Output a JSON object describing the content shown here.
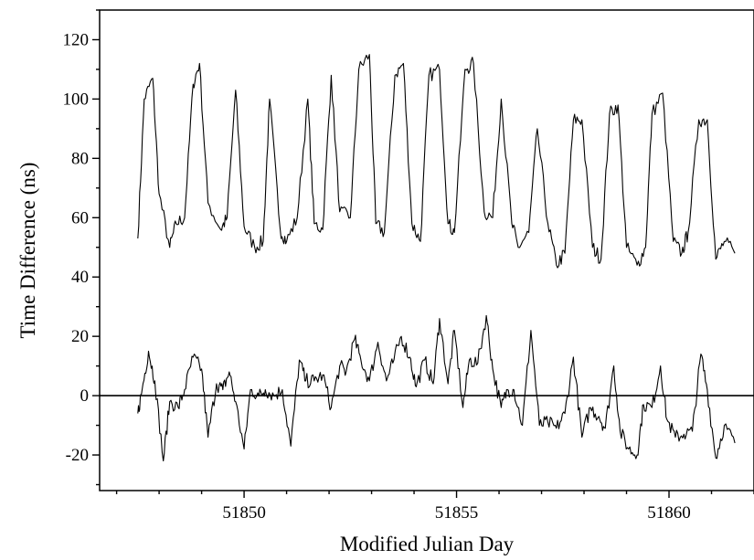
{
  "chart_data": {
    "type": "line",
    "xlabel": "Modified Julian Day",
    "ylabel": "Time Difference (ns)",
    "xlim": [
      51846.6,
      51862.0
    ],
    "ylim": [
      -32,
      130
    ],
    "x_ticks": [
      51850,
      51855,
      51860
    ],
    "x_tick_labels": [
      "51850",
      "51855",
      "51860"
    ],
    "y_ticks": [
      -20,
      0,
      20,
      40,
      60,
      80,
      100,
      120
    ],
    "y_tick_labels": [
      "-20",
      "0",
      "20",
      "40",
      "60",
      "80",
      "100",
      "120"
    ],
    "reference_line_y": 0,
    "grid": false,
    "legend": "none",
    "series": [
      {
        "x": [
          51847.5,
          51847.65,
          51847.85,
          51848.0,
          51848.25,
          51848.4,
          51848.6,
          51848.8,
          51848.95,
          51849.15,
          51849.45,
          51849.6,
          51849.8,
          51850.0,
          51850.25,
          51850.45,
          51850.6,
          51850.85,
          51851.0,
          51851.25,
          51851.5,
          51851.65,
          51851.85,
          51852.05,
          51852.25,
          51852.5,
          51852.7,
          51852.95,
          51853.1,
          51853.3,
          51853.55,
          51853.75,
          51853.95,
          51854.15,
          51854.35,
          51854.6,
          51854.8,
          51854.95,
          51855.2,
          51855.4,
          51855.65,
          51855.85,
          51856.05,
          51856.3,
          51856.45,
          51856.7,
          51856.9,
          51857.15,
          51857.35,
          51857.55,
          51857.75,
          51857.95,
          51858.2,
          51858.4,
          51858.6,
          51858.8,
          51859.0,
          51859.25,
          51859.45,
          51859.6,
          51859.85,
          51860.1,
          51860.3,
          51860.45,
          51860.7,
          51860.9,
          51861.1,
          51861.3,
          51861.55
        ],
        "y": [
          53,
          100,
          107,
          68,
          50,
          58,
          60,
          105,
          112,
          65,
          56,
          60,
          103,
          57,
          50,
          52,
          100,
          56,
          52,
          60,
          100,
          58,
          56,
          108,
          62,
          60,
          110,
          115,
          58,
          55,
          108,
          112,
          58,
          52,
          108,
          110,
          58,
          55,
          110,
          112,
          62,
          60,
          100,
          58,
          50,
          55,
          90,
          58,
          44,
          48,
          93,
          93,
          50,
          46,
          95,
          98,
          50,
          44,
          50,
          95,
          102,
          52,
          48,
          55,
          93,
          93,
          46,
          52,
          48
        ]
      },
      {
        "x": [
          51847.5,
          51847.6,
          51847.75,
          51847.9,
          51848.1,
          51848.25,
          51848.45,
          51848.6,
          51848.8,
          51849.0,
          51849.15,
          51849.35,
          51849.5,
          51849.65,
          51849.8,
          51850.0,
          51850.15,
          51850.35,
          51850.5,
          51850.7,
          51850.9,
          51851.1,
          51851.3,
          51851.45,
          51851.65,
          51851.85,
          51852.05,
          51852.25,
          51852.4,
          51852.6,
          51852.75,
          51852.95,
          51853.15,
          51853.35,
          51853.5,
          51853.7,
          51853.9,
          51854.05,
          51854.25,
          51854.45,
          51854.6,
          51854.8,
          51854.95,
          51855.15,
          51855.3,
          51855.5,
          51855.7,
          51855.85,
          51856.05,
          51856.2,
          51856.35,
          51856.55,
          51856.75,
          51856.95,
          51857.15,
          51857.35,
          51857.55,
          51857.75,
          51857.95,
          51858.15,
          51858.35,
          51858.5,
          51858.7,
          51858.85,
          51859.05,
          51859.25,
          51859.4,
          51859.6,
          51859.8,
          51859.95,
          51860.15,
          51860.35,
          51860.55,
          51860.75,
          51860.9,
          51861.1,
          51861.3,
          51861.55
        ],
        "y": [
          -6,
          2,
          15,
          5,
          -22,
          -2,
          -4,
          2,
          13,
          9,
          -14,
          4,
          2,
          8,
          -2,
          -18,
          2,
          0,
          2,
          0,
          2,
          -17,
          12,
          5,
          5,
          7,
          -4,
          10,
          8,
          19,
          12,
          5,
          18,
          5,
          11,
          20,
          13,
          3,
          12,
          4,
          26,
          4,
          22,
          -4,
          12,
          11,
          27,
          9,
          -4,
          2,
          2,
          -10,
          22,
          -10,
          -9,
          -11,
          -6,
          13,
          -14,
          -4,
          -7,
          -11,
          10,
          -12,
          -18,
          -20,
          -3,
          -4,
          10,
          -8,
          -14,
          -13,
          -12,
          14,
          2,
          -21,
          -10,
          -16
        ]
      }
    ]
  }
}
